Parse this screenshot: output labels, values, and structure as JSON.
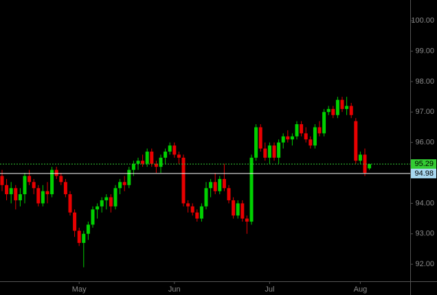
{
  "chart_data": {
    "type": "candlestick",
    "categories": [
      null,
      null,
      null,
      null,
      null,
      null,
      null,
      null,
      null,
      null,
      null,
      null,
      null,
      null,
      null,
      null,
      null,
      "May",
      null,
      null,
      null,
      null,
      null,
      null,
      null,
      null,
      null,
      null,
      null,
      null,
      null,
      null,
      null,
      null,
      null,
      null,
      null,
      null,
      "Jun",
      null,
      null,
      null,
      null,
      null,
      null,
      null,
      null,
      null,
      null,
      null,
      null,
      null,
      null,
      null,
      null,
      null,
      null,
      null,
      null,
      "Jul",
      null,
      null,
      null,
      null,
      null,
      null,
      null,
      null,
      null,
      null,
      null,
      null,
      null,
      null,
      null,
      null,
      null,
      null,
      null,
      "Aug",
      null,
      null
    ],
    "open": [
      94.9,
      94.6,
      94.3,
      94.5,
      94.1,
      94.3,
      94.9,
      94.7,
      94.5,
      94.0,
      94.4,
      94.3,
      95.1,
      94.9,
      94.7,
      94.3,
      93.7,
      93.1,
      92.7,
      93.0,
      93.3,
      93.8,
      93.9,
      94.1,
      94.2,
      93.9,
      94.5,
      94.7,
      94.6,
      95.1,
      95.3,
      95.4,
      95.3,
      95.7,
      95.3,
      95.2,
      95.5,
      95.7,
      95.9,
      95.6,
      95.5,
      94.0,
      93.9,
      93.7,
      93.5,
      93.9,
      94.5,
      94.7,
      94.4,
      94.8,
      94.5,
      94.1,
      93.6,
      94.0,
      93.5,
      93.4,
      95.5,
      96.5,
      95.8,
      95.5,
      95.9,
      95.5,
      96.0,
      96.2,
      96.1,
      96.2,
      96.6,
      96.3,
      96.1,
      95.9,
      96.5,
      96.3,
      97.0,
      97.1,
      96.9,
      97.4,
      97.1,
      97.2,
      96.7,
      95.4,
      95.6,
      95.15
    ],
    "high": [
      95.1,
      94.8,
      94.7,
      94.6,
      94.5,
      95.0,
      95.1,
      94.8,
      94.6,
      94.6,
      94.7,
      95.2,
      95.2,
      95.0,
      94.8,
      94.4,
      93.8,
      93.2,
      93.1,
      93.4,
      93.9,
      94.0,
      94.2,
      94.3,
      94.3,
      94.6,
      94.8,
      94.9,
      95.2,
      95.4,
      95.5,
      95.6,
      95.8,
      95.8,
      95.4,
      95.6,
      95.8,
      96.0,
      96.0,
      95.7,
      95.6,
      94.1,
      94.0,
      93.8,
      94.0,
      94.7,
      94.8,
      95.0,
      94.9,
      95.3,
      94.6,
      94.2,
      94.1,
      94.1,
      93.6,
      95.6,
      96.6,
      96.6,
      96.0,
      96.0,
      96.0,
      96.1,
      96.3,
      96.4,
      96.3,
      96.7,
      96.7,
      96.5,
      96.2,
      96.6,
      96.7,
      97.1,
      97.2,
      97.2,
      97.5,
      97.5,
      97.5,
      97.3,
      96.8,
      95.7,
      95.8,
      95.3
    ],
    "low": [
      94.4,
      94.1,
      94.0,
      93.8,
      93.9,
      94.0,
      94.6,
      94.3,
      93.9,
      93.9,
      94.0,
      94.2,
      94.8,
      94.6,
      94.2,
      93.6,
      92.9,
      92.6,
      91.9,
      92.8,
      93.2,
      93.5,
      93.7,
      93.8,
      93.7,
      93.8,
      94.3,
      94.4,
      94.5,
      94.9,
      95.1,
      95.2,
      95.2,
      95.2,
      95.0,
      95.0,
      95.3,
      95.6,
      95.5,
      95.3,
      93.9,
      93.7,
      93.6,
      93.4,
      93.4,
      93.8,
      94.2,
      94.3,
      94.3,
      94.4,
      94.0,
      93.5,
      93.5,
      93.4,
      93.0,
      93.3,
      95.4,
      95.7,
      95.4,
      95.3,
      95.4,
      95.3,
      95.8,
      96.0,
      95.9,
      96.1,
      96.2,
      96.0,
      95.8,
      95.8,
      96.2,
      96.2,
      96.9,
      96.8,
      96.8,
      97.0,
      96.9,
      96.8,
      95.3,
      95.3,
      94.9,
      95.1
    ],
    "close": [
      94.6,
      94.3,
      94.5,
      94.1,
      94.3,
      94.9,
      94.7,
      94.5,
      94.0,
      94.4,
      94.3,
      95.1,
      94.9,
      94.7,
      94.3,
      93.7,
      93.1,
      92.7,
      93.0,
      93.3,
      93.8,
      93.9,
      94.1,
      94.2,
      93.9,
      94.5,
      94.7,
      94.6,
      95.1,
      95.3,
      95.4,
      95.3,
      95.7,
      95.3,
      95.2,
      95.5,
      95.7,
      95.9,
      95.6,
      95.5,
      94.0,
      93.9,
      93.7,
      93.5,
      93.9,
      94.5,
      94.7,
      94.4,
      94.8,
      94.5,
      94.1,
      93.6,
      94.0,
      93.5,
      93.4,
      95.5,
      96.5,
      95.8,
      95.5,
      95.9,
      95.5,
      96.0,
      96.2,
      96.1,
      96.2,
      96.6,
      96.3,
      96.1,
      95.9,
      96.5,
      96.3,
      97.0,
      97.1,
      96.9,
      97.4,
      97.1,
      97.2,
      96.9,
      95.4,
      95.6,
      95.0,
      95.29
    ],
    "up_color": "#00d000",
    "down_color": "#e80000",
    "ylim": [
      91.44,
      100.68
    ],
    "yticks": [
      {
        "value": 92,
        "label": "92.00"
      },
      {
        "value": 93,
        "label": "93.00"
      },
      {
        "value": 94,
        "label": "94.00"
      },
      {
        "value": 95,
        "label": "95.00"
      },
      {
        "value": 96,
        "label": "96.00"
      },
      {
        "value": 97,
        "label": "97.00"
      },
      {
        "value": 98,
        "label": "98.00"
      },
      {
        "value": 99,
        "label": "99.00"
      },
      {
        "value": 100,
        "label": "100.00"
      }
    ],
    "price_lines": [
      {
        "value": 95.29,
        "label": "95.29",
        "color": "#33cc33"
      },
      {
        "value": 94.98,
        "label": "94.98",
        "color": "#a8d8f0"
      }
    ]
  }
}
